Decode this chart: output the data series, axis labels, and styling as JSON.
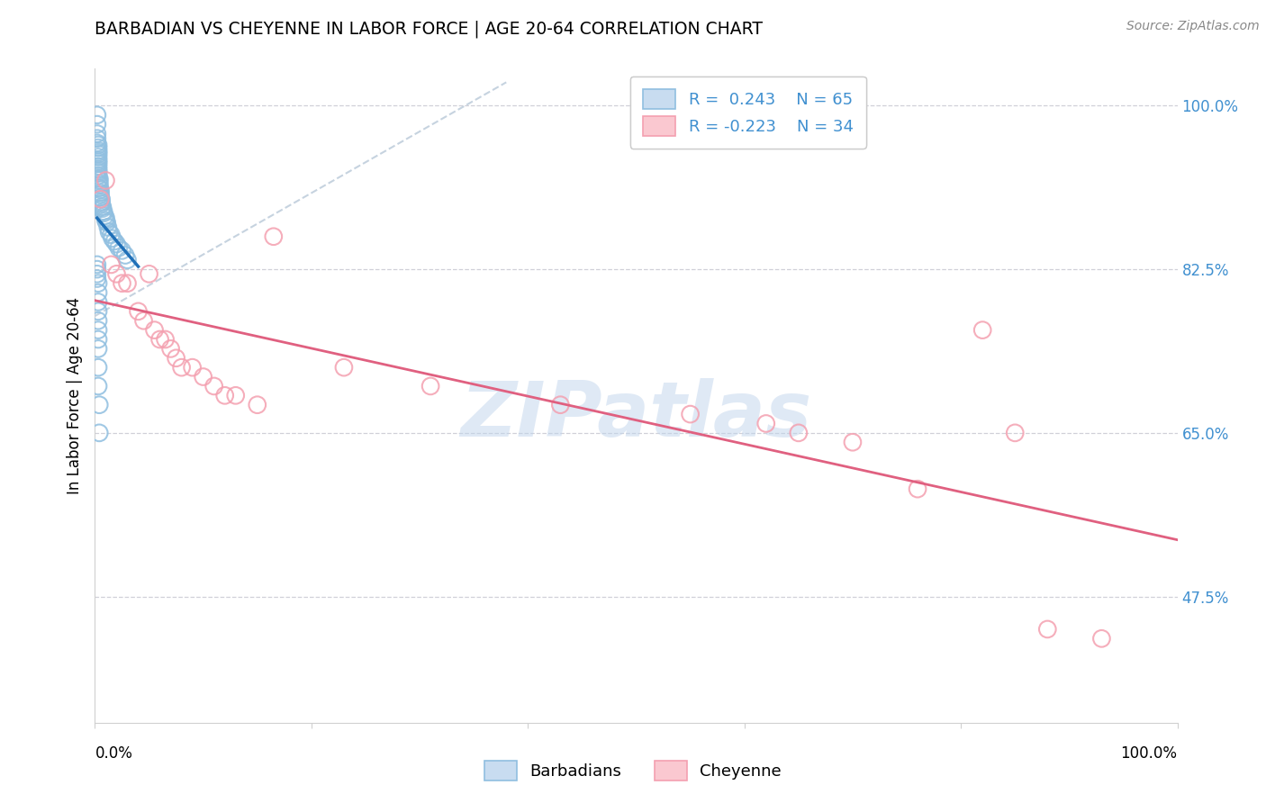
{
  "title": "BARBADIAN VS CHEYENNE IN LABOR FORCE | AGE 20-64 CORRELATION CHART",
  "source": "Source: ZipAtlas.com",
  "ylabel": "In Labor Force | Age 20-64",
  "legend_label1": "Barbadians",
  "legend_label2": "Cheyenne",
  "r1": 0.243,
  "n1": 65,
  "r2": -0.223,
  "n2": 34,
  "watermark": "ZIPatlas",
  "right_yticklabels": [
    "100.0%",
    "82.5%",
    "65.0%",
    "47.5%"
  ],
  "right_ytick_vals": [
    1.0,
    0.825,
    0.65,
    0.475
  ],
  "blue_scatter_color": "#90bfe0",
  "blue_line_color": "#2070b8",
  "pink_scatter_color": "#f4a0b0",
  "pink_line_color": "#e06080",
  "ymin": 0.34,
  "ymax": 1.04,
  "xmin": 0.0,
  "xmax": 1.0,
  "blue_x": [
    0.002,
    0.002,
    0.002,
    0.002,
    0.002,
    0.003,
    0.003,
    0.003,
    0.003,
    0.003,
    0.003,
    0.003,
    0.003,
    0.003,
    0.003,
    0.003,
    0.003,
    0.003,
    0.003,
    0.004,
    0.004,
    0.004,
    0.004,
    0.004,
    0.005,
    0.005,
    0.005,
    0.005,
    0.006,
    0.006,
    0.006,
    0.007,
    0.007,
    0.008,
    0.008,
    0.009,
    0.01,
    0.01,
    0.011,
    0.012,
    0.013,
    0.015,
    0.016,
    0.018,
    0.02,
    0.022,
    0.025,
    0.028,
    0.03,
    0.002,
    0.002,
    0.002,
    0.002,
    0.003,
    0.003,
    0.003,
    0.003,
    0.003,
    0.003,
    0.003,
    0.003,
    0.003,
    0.003,
    0.004,
    0.004
  ],
  "blue_y": [
    0.99,
    0.98,
    0.97,
    0.965,
    0.96,
    0.958,
    0.955,
    0.952,
    0.95,
    0.948,
    0.945,
    0.942,
    0.94,
    0.938,
    0.935,
    0.932,
    0.93,
    0.928,
    0.925,
    0.922,
    0.92,
    0.917,
    0.915,
    0.912,
    0.91,
    0.907,
    0.905,
    0.902,
    0.9,
    0.897,
    0.895,
    0.892,
    0.89,
    0.887,
    0.885,
    0.882,
    0.88,
    0.877,
    0.875,
    0.87,
    0.865,
    0.862,
    0.858,
    0.855,
    0.852,
    0.848,
    0.845,
    0.84,
    0.835,
    0.83,
    0.825,
    0.82,
    0.815,
    0.81,
    0.8,
    0.79,
    0.78,
    0.77,
    0.76,
    0.75,
    0.74,
    0.72,
    0.7,
    0.68,
    0.65
  ],
  "pink_x": [
    0.005,
    0.01,
    0.015,
    0.02,
    0.025,
    0.03,
    0.04,
    0.045,
    0.05,
    0.055,
    0.06,
    0.065,
    0.07,
    0.075,
    0.08,
    0.09,
    0.1,
    0.11,
    0.12,
    0.13,
    0.15,
    0.165,
    0.23,
    0.31,
    0.43,
    0.55,
    0.62,
    0.65,
    0.7,
    0.76,
    0.82,
    0.85,
    0.88,
    0.93
  ],
  "pink_y": [
    0.9,
    0.92,
    0.83,
    0.82,
    0.81,
    0.81,
    0.78,
    0.77,
    0.82,
    0.76,
    0.75,
    0.75,
    0.74,
    0.73,
    0.72,
    0.72,
    0.71,
    0.7,
    0.69,
    0.69,
    0.68,
    0.86,
    0.72,
    0.7,
    0.68,
    0.67,
    0.66,
    0.65,
    0.64,
    0.59,
    0.76,
    0.65,
    0.44,
    0.43
  ]
}
